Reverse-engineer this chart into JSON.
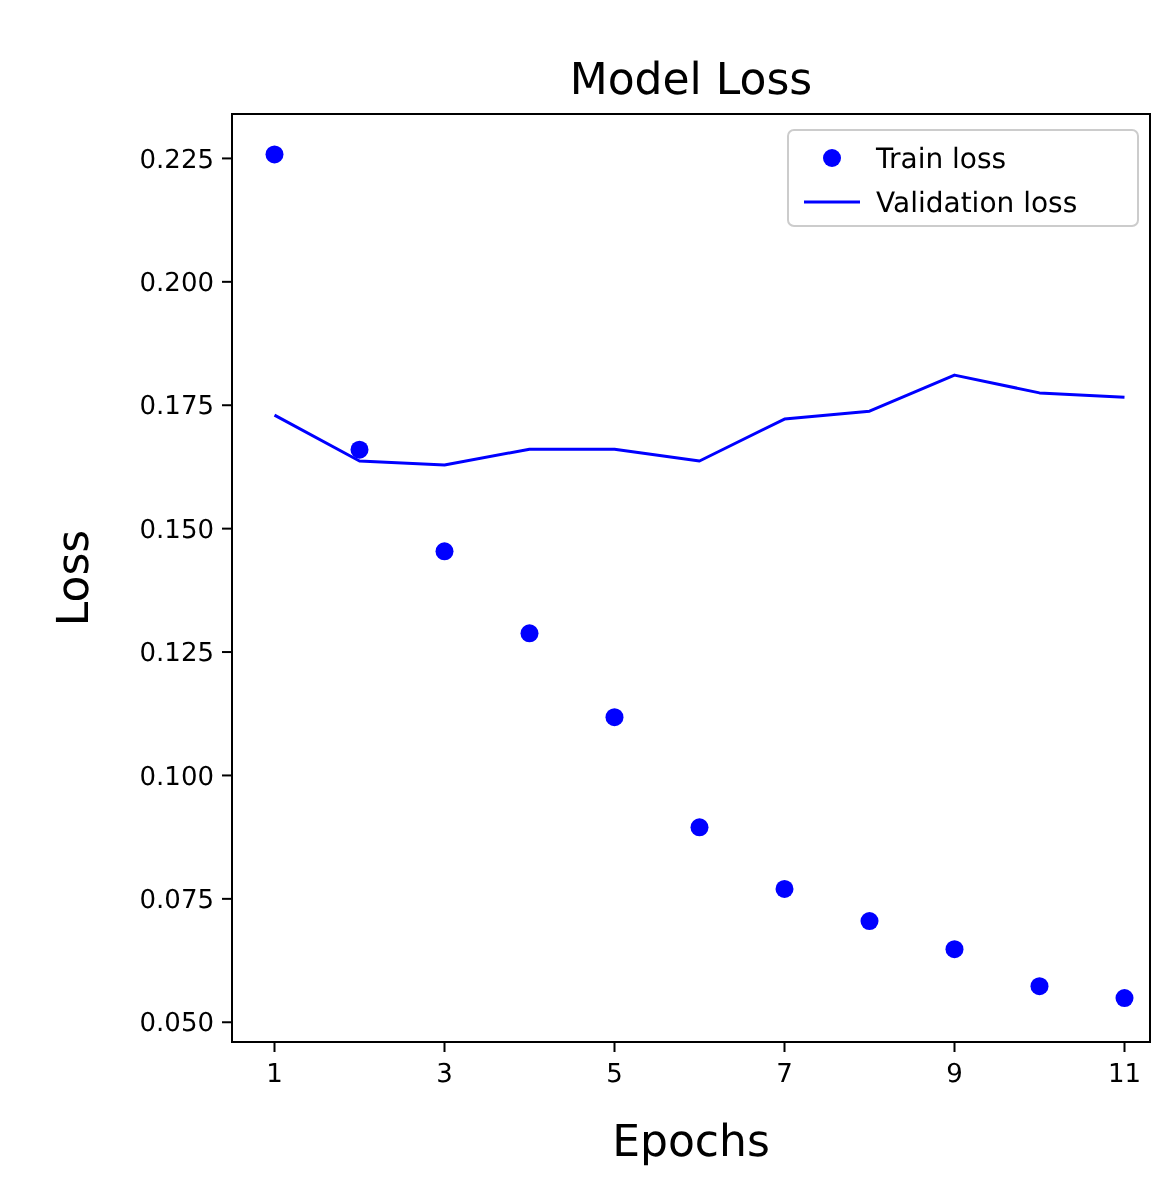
{
  "chart_data": {
    "type": "line",
    "title": "Model Loss",
    "xlabel": "Epochs",
    "ylabel": "Loss",
    "x": [
      1,
      2,
      3,
      4,
      5,
      6,
      7,
      8,
      9,
      10,
      11
    ],
    "series": [
      {
        "name": "Train loss",
        "type": "scatter",
        "color": "#0000ff",
        "marker": "circle",
        "values": [
          0.2258,
          0.166,
          0.1454,
          0.1288,
          0.1118,
          0.0895,
          0.077,
          0.0705,
          0.0648,
          0.0573,
          0.0549
        ]
      },
      {
        "name": "Validation loss",
        "color": "#0000ff",
        "line_style": "solid",
        "values": [
          0.173,
          0.1637,
          0.1629,
          0.1661,
          0.1661,
          0.1637,
          0.1722,
          0.1738,
          0.1811,
          0.1775,
          0.1766
        ]
      }
    ],
    "xlim": [
      0.5,
      11.3
    ],
    "ylim": [
      0.046,
      0.234
    ],
    "xticks": [
      1,
      3,
      5,
      7,
      9,
      11
    ],
    "yticks": [
      {
        "value": 0.05,
        "label": "0.050"
      },
      {
        "value": 0.075,
        "label": "0.075"
      },
      {
        "value": 0.1,
        "label": "0.100"
      },
      {
        "value": 0.125,
        "label": "0.125"
      },
      {
        "value": 0.15,
        "label": "0.150"
      },
      {
        "value": 0.175,
        "label": "0.175"
      },
      {
        "value": 0.2,
        "label": "0.200"
      },
      {
        "value": 0.225,
        "label": "0.225"
      }
    ],
    "legend": "top right",
    "grid": false
  }
}
